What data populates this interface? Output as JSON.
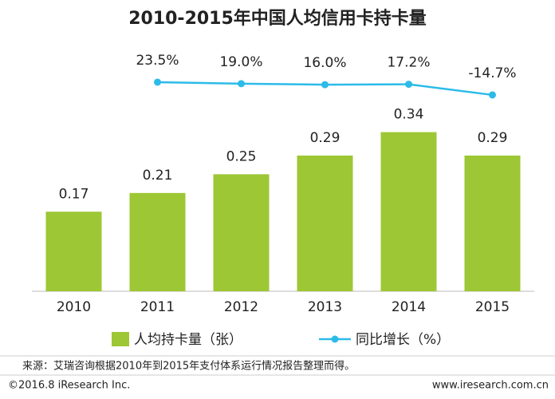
{
  "chart_data": {
    "type": "bar",
    "title": "2010-2015年中国人均信用卡持卡量",
    "categories": [
      "2010",
      "2011",
      "2012",
      "2013",
      "2014",
      "2015"
    ],
    "series": [
      {
        "name": "人均持卡量（张）",
        "type": "bar",
        "color": "#9dc734",
        "values": [
          0.17,
          0.21,
          0.25,
          0.29,
          0.34,
          0.29
        ]
      },
      {
        "name": "同比增长（%）",
        "type": "line",
        "axis": "y2",
        "color": "#2cbbe8",
        "values": [
          null,
          23.5,
          19.0,
          16.0,
          17.2,
          -14.7
        ],
        "value_labels": [
          null,
          "23.5%",
          "19.0%",
          "16.0%",
          "17.2%",
          "-14.7%"
        ]
      }
    ],
    "ylim": [
      0,
      0.52
    ],
    "y2lim": [
      -602,
      126
    ],
    "source": "来源：艾瑞咨询根据2010年到2015年支付体系运行情况报告整理而得。",
    "footer_left": "©2016.8 iResearch Inc.",
    "footer_right": "www.iresearch.com.cn"
  }
}
